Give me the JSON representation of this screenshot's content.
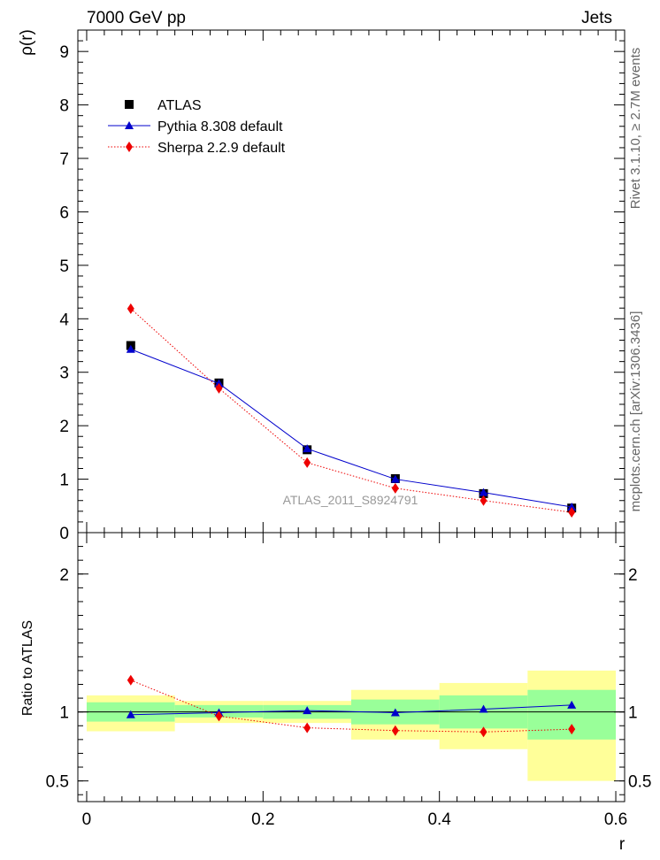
{
  "header": {
    "left": "7000 GeV pp",
    "right": "Jets"
  },
  "side_labels": {
    "rivet": "Rivet 3.1.10, ≥ 2.7M events",
    "mcplots": "mcplots.cern.ch [arXiv:1306.3436]"
  },
  "analysis_label": "ATLAS_2011_S8924791",
  "chart_data": [
    {
      "type": "scatter",
      "panel": "main",
      "ylabel": "ρ(r)",
      "xlim": [
        -0.01,
        0.61
      ],
      "ylim": [
        0,
        9.4
      ],
      "y_ticks": [
        {
          "v": 0,
          "label": "0"
        },
        {
          "v": 1,
          "label": "1"
        },
        {
          "v": 2,
          "label": "2"
        },
        {
          "v": 3,
          "label": "3"
        },
        {
          "v": 4,
          "label": "4"
        },
        {
          "v": 5,
          "label": "5"
        },
        {
          "v": 6,
          "label": "6"
        },
        {
          "v": 7,
          "label": "7"
        },
        {
          "v": 8,
          "label": "8"
        },
        {
          "v": 9,
          "label": "9"
        }
      ],
      "x": [
        0.05,
        0.15,
        0.25,
        0.35,
        0.45,
        0.55
      ],
      "series": [
        {
          "name": "ATLAS",
          "marker": "square",
          "color": "#000000",
          "values": [
            3.5,
            2.8,
            1.55,
            1.01,
            0.73,
            0.46
          ]
        },
        {
          "name": "Pythia 8.308 default",
          "marker": "triangle",
          "line": "solid",
          "color": "#0000cc",
          "values": [
            3.43,
            2.79,
            1.57,
            1.0,
            0.75,
            0.48
          ]
        },
        {
          "name": "Sherpa 2.2.9 default",
          "marker": "diamond",
          "line": "dotted",
          "color": "#ee0000",
          "values": [
            4.19,
            2.7,
            1.31,
            0.83,
            0.6,
            0.38
          ]
        }
      ],
      "legend": "top-left"
    },
    {
      "type": "scatter",
      "panel": "ratio",
      "ylabel": "Ratio to ATLAS",
      "xlabel": "r",
      "xlim": [
        -0.01,
        0.61
      ],
      "ylim": [
        0.35,
        2.3
      ],
      "x_ticks": [
        {
          "v": 0,
          "label": "0"
        },
        {
          "v": 0.2,
          "label": "0.2"
        },
        {
          "v": 0.4,
          "label": "0.4"
        },
        {
          "v": 0.6,
          "label": "0.6"
        }
      ],
      "y_ticks": [
        {
          "v": 0.5,
          "label": "0.5"
        },
        {
          "v": 1,
          "label": "1"
        },
        {
          "v": 2,
          "label": "2"
        }
      ],
      "bins": [
        {
          "lo": 0.0,
          "hi": 0.1,
          "green": [
            0.93,
            1.07
          ],
          "yellow": [
            0.86,
            1.12
          ]
        },
        {
          "lo": 0.1,
          "hi": 0.2,
          "green": [
            0.96,
            1.05
          ],
          "yellow": [
            0.92,
            1.08
          ]
        },
        {
          "lo": 0.2,
          "hi": 0.3,
          "green": [
            0.95,
            1.05
          ],
          "yellow": [
            0.92,
            1.08
          ]
        },
        {
          "lo": 0.3,
          "hi": 0.4,
          "green": [
            0.91,
            1.09
          ],
          "yellow": [
            0.8,
            1.16
          ]
        },
        {
          "lo": 0.4,
          "hi": 0.5,
          "green": [
            0.88,
            1.12
          ],
          "yellow": [
            0.73,
            1.21
          ]
        },
        {
          "lo": 0.5,
          "hi": 0.6,
          "green": [
            0.8,
            1.16
          ],
          "yellow": [
            0.5,
            1.3
          ]
        }
      ],
      "x": [
        0.05,
        0.15,
        0.25,
        0.35,
        0.45,
        0.55
      ],
      "series": [
        {
          "name": "Pythia 8.308 default",
          "marker": "triangle",
          "line": "solid",
          "color": "#0000cc",
          "values": [
            0.98,
            0.995,
            1.01,
            0.995,
            1.02,
            1.05
          ]
        },
        {
          "name": "Sherpa 2.2.9 default",
          "marker": "diamond",
          "line": "dotted",
          "color": "#ee0000",
          "values": [
            1.23,
            0.97,
            0.885,
            0.865,
            0.855,
            0.875
          ]
        }
      ],
      "band_colors": {
        "green": "#99ff99",
        "yellow": "#ffff99"
      }
    }
  ]
}
